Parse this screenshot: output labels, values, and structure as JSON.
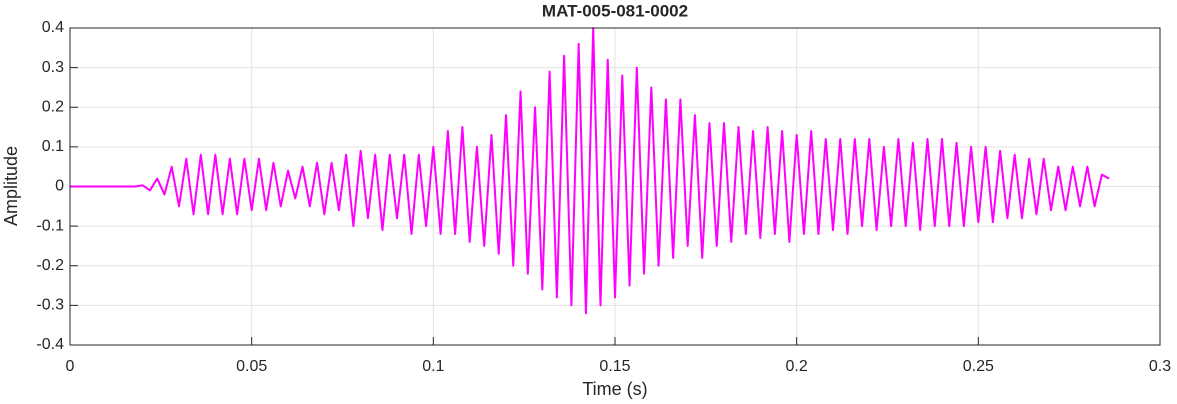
{
  "chart_data": {
    "type": "line",
    "title": "MAT-005-081-0002",
    "x_label": "Time (s)",
    "y_label": "Amplitude",
    "color": "#ff00ff",
    "grid": true,
    "xlim": [
      0,
      0.3
    ],
    "xticks": [
      0,
      0.05,
      0.1,
      0.15,
      0.2,
      0.25,
      0.3
    ],
    "ylim": [
      -0.4,
      0.4
    ],
    "yticks": [
      -0.4,
      -0.3,
      -0.2,
      -0.1,
      0,
      0.1,
      0.2,
      0.3,
      0.4
    ],
    "x": [
      0,
      0.01,
      0.018,
      0.02,
      0.022,
      0.024,
      0.026,
      0.028,
      0.03,
      0.032,
      0.034,
      0.036,
      0.038,
      0.04,
      0.042,
      0.044,
      0.046,
      0.048,
      0.05,
      0.052,
      0.054,
      0.056,
      0.058,
      0.06,
      0.062,
      0.064,
      0.066,
      0.068,
      0.07,
      0.072,
      0.074,
      0.076,
      0.078,
      0.08,
      0.082,
      0.084,
      0.086,
      0.088,
      0.09,
      0.092,
      0.094,
      0.096,
      0.098,
      0.1,
      0.102,
      0.104,
      0.106,
      0.108,
      0.11,
      0.112,
      0.114,
      0.116,
      0.118,
      0.12,
      0.122,
      0.124,
      0.126,
      0.128,
      0.13,
      0.132,
      0.134,
      0.136,
      0.138,
      0.14,
      0.142,
      0.144,
      0.146,
      0.148,
      0.15,
      0.152,
      0.154,
      0.156,
      0.158,
      0.16,
      0.162,
      0.164,
      0.166,
      0.168,
      0.17,
      0.172,
      0.174,
      0.176,
      0.178,
      0.18,
      0.182,
      0.184,
      0.186,
      0.188,
      0.19,
      0.192,
      0.194,
      0.196,
      0.198,
      0.2,
      0.202,
      0.204,
      0.206,
      0.208,
      0.21,
      0.212,
      0.214,
      0.216,
      0.218,
      0.22,
      0.222,
      0.224,
      0.226,
      0.228,
      0.23,
      0.232,
      0.234,
      0.236,
      0.238,
      0.24,
      0.242,
      0.244,
      0.246,
      0.248,
      0.25,
      0.252,
      0.254,
      0.256,
      0.258,
      0.26,
      0.262,
      0.264,
      0.266,
      0.268,
      0.27,
      0.272,
      0.274,
      0.276,
      0.278,
      0.28,
      0.282,
      0.284,
      0.286
    ],
    "values": [
      0,
      0,
      0,
      0.003,
      -0.01,
      0.02,
      -0.02,
      0.05,
      -0.05,
      0.07,
      -0.07,
      0.08,
      -0.07,
      0.08,
      -0.07,
      0.07,
      -0.07,
      0.07,
      -0.06,
      0.07,
      -0.06,
      0.06,
      -0.05,
      0.04,
      -0.03,
      0.05,
      -0.05,
      0.06,
      -0.07,
      0.06,
      -0.06,
      0.08,
      -0.1,
      0.09,
      -0.08,
      0.08,
      -0.11,
      0.08,
      -0.08,
      0.08,
      -0.12,
      0.08,
      -0.1,
      0.1,
      -0.12,
      0.14,
      -0.12,
      0.15,
      -0.14,
      0.1,
      -0.15,
      0.13,
      -0.17,
      0.18,
      -0.2,
      0.24,
      -0.22,
      0.2,
      -0.26,
      0.29,
      -0.28,
      0.33,
      -0.3,
      0.36,
      -0.32,
      0.4,
      -0.3,
      0.32,
      -0.28,
      0.28,
      -0.25,
      0.3,
      -0.22,
      0.25,
      -0.2,
      0.22,
      -0.18,
      0.22,
      -0.15,
      0.18,
      -0.18,
      0.16,
      -0.15,
      0.16,
      -0.14,
      0.15,
      -0.12,
      0.14,
      -0.13,
      0.15,
      -0.12,
      0.14,
      -0.14,
      0.13,
      -0.12,
      0.14,
      -0.12,
      0.12,
      -0.11,
      0.12,
      -0.12,
      0.12,
      -0.1,
      0.12,
      -0.11,
      0.1,
      -0.1,
      0.12,
      -0.1,
      0.11,
      -0.11,
      0.12,
      -0.1,
      0.12,
      -0.1,
      0.11,
      -0.1,
      0.1,
      -0.09,
      0.1,
      -0.09,
      0.09,
      -0.08,
      0.08,
      -0.08,
      0.07,
      -0.07,
      0.07,
      -0.06,
      0.05,
      -0.06,
      0.05,
      -0.05,
      0.05,
      -0.05,
      0.03,
      0.02
    ]
  }
}
